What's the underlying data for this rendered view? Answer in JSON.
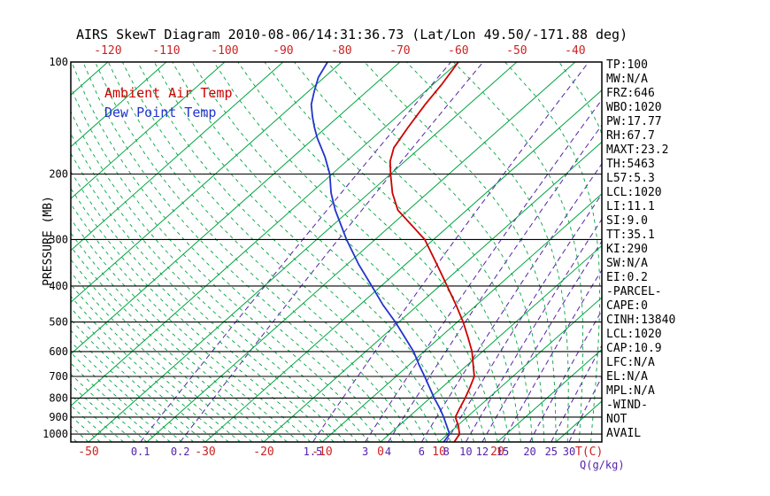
{
  "title": "AIRS SkewT Diagram 2010-08-06/14:31:36.73 (Lat/Lon 49.50/-171.88 deg)",
  "legend": {
    "temp": "Ambient Air Temp",
    "dewpoint": "Dew Point Temp"
  },
  "params": [
    "TP:100",
    "MW:N/A",
    "FRZ:646",
    "WBO:1020",
    "PW:17.77",
    "RH:67.7",
    "MAXT:23.2",
    "TH:5463",
    "L57:5.3",
    "LCL:1020",
    "LI:11.1",
    "SI:9.0",
    "TT:35.1",
    "KI:290",
    "SW:N/A",
    "EI:0.2",
    "-PARCEL-",
    "CAPE:0",
    "CINH:13840",
    "LCL:1020",
    "CAP:10.9",
    "LFC:N/A",
    "EL:N/A",
    "MPL:N/A",
    "-WIND-",
    "NOT",
    "AVAIL"
  ],
  "colors": {
    "temp": "#cc0000",
    "dewpoint": "#2233cc",
    "isotherm": "#00a540",
    "adiabat": "#00a540",
    "mixing": "#5522aa",
    "axis_red": "#cc2222",
    "black": "#000000"
  },
  "chart_data": {
    "type": "line",
    "title": "AIRS SkewT Diagram 2010-08-06/14:31:36.73 (Lat/Lon 49.50/-171.88 deg)",
    "x_axis": {
      "label": "T(C)",
      "secondary_label": "Q(g/kg)",
      "skewed": true,
      "top_ticks": [
        -120,
        -110,
        -100,
        -90,
        -80,
        -70,
        -60,
        -50,
        -40
      ],
      "bottom_ticks": [
        -50,
        -30,
        -20,
        -10,
        0,
        10,
        20
      ]
    },
    "y_axis": {
      "label": "PRESSURE (MB)",
      "scale": "log",
      "ticks": [
        100,
        200,
        300,
        400,
        500,
        600,
        700,
        800,
        900,
        1000
      ],
      "range": [
        100,
        1050
      ]
    },
    "isotherms": {
      "min": -120,
      "max": 40,
      "step": 10
    },
    "mixing_ratio_lines_g_per_kg": [
      0.1,
      0.2,
      1.5,
      3,
      4,
      6,
      8,
      10,
      12,
      15,
      20,
      25,
      30
    ],
    "moist_adiabats": {
      "surface_temp_min": -60,
      "surface_temp_max": 40,
      "step": 2
    },
    "series": [
      {
        "name": "Ambient Air Temp",
        "color_key": "temp",
        "points_p_t": [
          [
            1050,
            12.6
          ],
          [
            1000,
            12.0
          ],
          [
            950,
            10.2
          ],
          [
            900,
            8.0
          ],
          [
            850,
            7.0
          ],
          [
            800,
            6.0
          ],
          [
            750,
            4.8
          ],
          [
            700,
            3.4
          ],
          [
            650,
            0.9
          ],
          [
            600,
            -1.8
          ],
          [
            550,
            -5.2
          ],
          [
            500,
            -9.0
          ],
          [
            450,
            -13.5
          ],
          [
            400,
            -18.7
          ],
          [
            350,
            -24.6
          ],
          [
            300,
            -31.5
          ],
          [
            250,
            -41.8
          ],
          [
            225,
            -46.0
          ],
          [
            200,
            -50.0
          ],
          [
            185,
            -52.5
          ],
          [
            170,
            -54.5
          ],
          [
            150,
            -56.0
          ],
          [
            130,
            -57.5
          ],
          [
            115,
            -58.5
          ],
          [
            100,
            -60.0
          ]
        ]
      },
      {
        "name": "Dew Point Temp",
        "color_key": "dewpoint",
        "points_p_t": [
          [
            1050,
            10.8
          ],
          [
            1000,
            10.3
          ],
          [
            950,
            8.2
          ],
          [
            900,
            6.0
          ],
          [
            850,
            3.5
          ],
          [
            800,
            0.7
          ],
          [
            750,
            -2.1
          ],
          [
            700,
            -5.1
          ],
          [
            650,
            -8.4
          ],
          [
            600,
            -11.8
          ],
          [
            550,
            -16.0
          ],
          [
            500,
            -20.6
          ],
          [
            450,
            -26.0
          ],
          [
            400,
            -31.6
          ],
          [
            350,
            -38.0
          ],
          [
            300,
            -44.9
          ],
          [
            250,
            -52.5
          ],
          [
            225,
            -56.5
          ],
          [
            200,
            -60.4
          ],
          [
            180,
            -64.5
          ],
          [
            160,
            -69.5
          ],
          [
            150,
            -72.0
          ],
          [
            140,
            -74.5
          ],
          [
            130,
            -77.0
          ],
          [
            120,
            -79.0
          ],
          [
            110,
            -81.0
          ],
          [
            100,
            -82.4
          ]
        ]
      }
    ]
  }
}
